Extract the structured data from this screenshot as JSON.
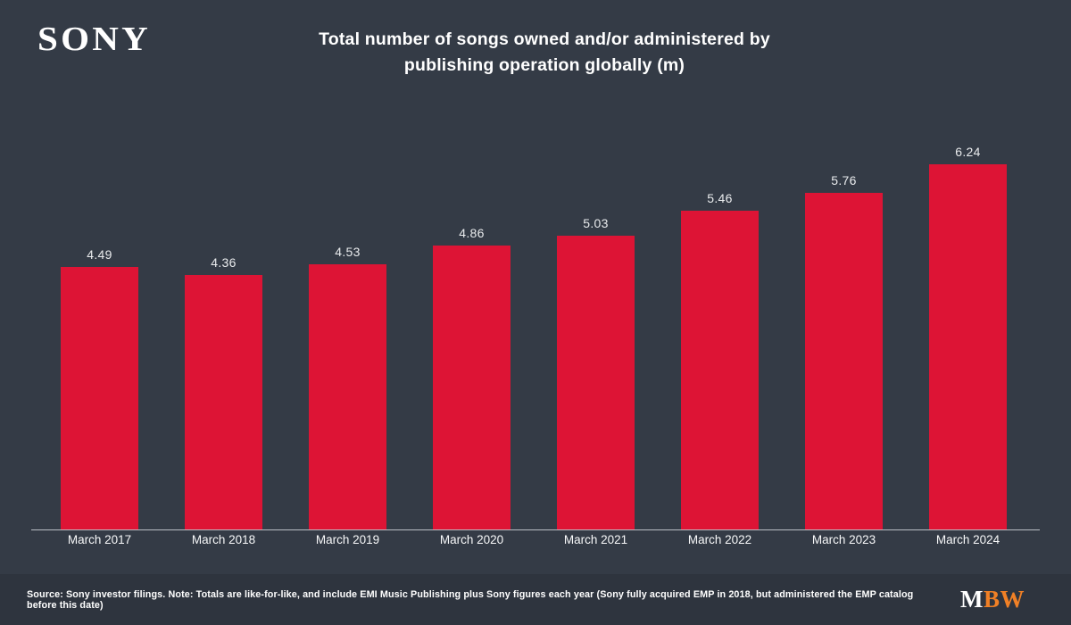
{
  "page": {
    "background_color": "#343b46",
    "footer_background_color": "#2e343e"
  },
  "header": {
    "brand": "SONY",
    "title_line1": "Total number of songs owned and/or administered by",
    "title_line2": "publishing operation globally (m)"
  },
  "chart_data": {
    "type": "bar",
    "title": "Total number of songs owned and/or administered by publishing operation globally (m)",
    "categories": [
      "March 2017",
      "March 2018",
      "March 2019",
      "March 2020",
      "March 2021",
      "March 2022",
      "March 2023",
      "March 2024"
    ],
    "values": [
      4.49,
      4.36,
      4.53,
      4.86,
      5.03,
      5.46,
      5.76,
      6.24
    ],
    "value_labels": [
      "4.49",
      "4.36",
      "4.53",
      "4.86",
      "5.03",
      "5.46",
      "5.76",
      "6.24"
    ],
    "xlabel": "",
    "ylabel": "",
    "ylim": [
      0,
      6.95
    ],
    "grid": false,
    "data_labels": true,
    "legend": false,
    "bar_color": "#dd1435",
    "value_label_color": "#e9ebed",
    "category_label_color": "#f7f8f9",
    "axis_line_color": "#c9cdd3"
  },
  "footer": {
    "source_note": "Source: Sony investor filings. Note: Totals are like-for-like, and include EMI Music Publishing plus Sony figures each year (Sony fully acquired EMP in 2018, but administered the EMP catalog before this date)",
    "logo_part1": "M",
    "logo_part2": "BW",
    "logo_accent_color": "#f08026"
  }
}
